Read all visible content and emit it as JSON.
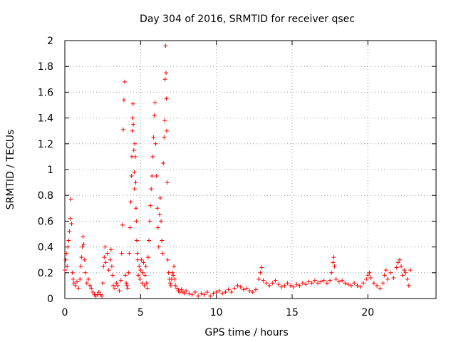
{
  "chart_data": {
    "type": "scatter",
    "title": "Day 304 of 2016, SRMTID for receiver qsec",
    "xlabel": "GPS time / hours",
    "ylabel": "SRMTID / TECUs",
    "xlim": [
      0,
      24.5
    ],
    "ylim": [
      0,
      2
    ],
    "xticks": [
      0,
      5,
      10,
      15,
      20
    ],
    "xtick_labels": [
      "0",
      "5",
      "10",
      "15",
      "20"
    ],
    "yticks": [
      0,
      0.2,
      0.4,
      0.6,
      0.8,
      1,
      1.2,
      1.4,
      1.6,
      1.8,
      2
    ],
    "ytick_labels": [
      "0",
      "0.2",
      "0.4",
      "0.6",
      "0.8",
      "1",
      "1.2",
      "1.4",
      "1.6",
      "1.8",
      "2"
    ],
    "grid": true,
    "marker": "+",
    "color": "#ff0000",
    "series": [
      {
        "name": "SRMTID",
        "points": [
          [
            0.0,
            0.22
          ],
          [
            0.05,
            0.3
          ],
          [
            0.1,
            0.35
          ],
          [
            0.15,
            0.25
          ],
          [
            0.2,
            0.4
          ],
          [
            0.25,
            0.45
          ],
          [
            0.3,
            0.52
          ],
          [
            0.35,
            0.62
          ],
          [
            0.4,
            0.77
          ],
          [
            0.45,
            0.58
          ],
          [
            0.5,
            0.2
          ],
          [
            0.55,
            0.15
          ],
          [
            0.6,
            0.12
          ],
          [
            0.7,
            0.1
          ],
          [
            0.8,
            0.13
          ],
          [
            0.9,
            0.08
          ],
          [
            1.0,
            0.15
          ],
          [
            1.05,
            0.25
          ],
          [
            1.1,
            0.32
          ],
          [
            1.15,
            0.4
          ],
          [
            1.2,
            0.48
          ],
          [
            1.25,
            0.42
          ],
          [
            1.3,
            0.3
          ],
          [
            1.35,
            0.2
          ],
          [
            1.45,
            0.12
          ],
          [
            1.55,
            0.15
          ],
          [
            1.65,
            0.1
          ],
          [
            1.75,
            0.08
          ],
          [
            1.85,
            0.05
          ],
          [
            1.95,
            0.03
          ],
          [
            2.05,
            0.02
          ],
          [
            2.15,
            0.03
          ],
          [
            2.25,
            0.05
          ],
          [
            2.35,
            0.03
          ],
          [
            2.45,
            0.02
          ],
          [
            2.5,
            0.12
          ],
          [
            2.55,
            0.25
          ],
          [
            2.6,
            0.32
          ],
          [
            2.65,
            0.4
          ],
          [
            2.7,
            0.28
          ],
          [
            2.8,
            0.35
          ],
          [
            2.9,
            0.22
          ],
          [
            3.0,
            0.3
          ],
          [
            3.05,
            0.38
          ],
          [
            3.1,
            0.25
          ],
          [
            3.15,
            0.18
          ],
          [
            3.2,
            0.1
          ],
          [
            3.3,
            0.08
          ],
          [
            3.4,
            0.12
          ],
          [
            3.5,
            0.1
          ],
          [
            3.6,
            0.06
          ],
          [
            3.7,
            0.14
          ],
          [
            3.75,
            0.35
          ],
          [
            3.8,
            0.57
          ],
          [
            3.85,
            1.31
          ],
          [
            3.9,
            1.54
          ],
          [
            3.95,
            1.68
          ],
          [
            4.0,
            0.18
          ],
          [
            4.05,
            0.12
          ],
          [
            4.1,
            0.1
          ],
          [
            4.15,
            0.08
          ],
          [
            4.2,
            0.2
          ],
          [
            4.25,
            0.35
          ],
          [
            4.3,
            0.55
          ],
          [
            4.35,
            0.75
          ],
          [
            4.4,
            0.95
          ],
          [
            4.42,
            1.1
          ],
          [
            4.45,
            1.3
          ],
          [
            4.47,
            1.4
          ],
          [
            4.5,
            1.51
          ],
          [
            4.52,
            1.35
          ],
          [
            4.55,
            1.15
          ],
          [
            4.58,
            0.98
          ],
          [
            4.6,
            0.85
          ],
          [
            4.62,
            1.2
          ],
          [
            4.65,
            1.1
          ],
          [
            4.68,
            0.9
          ],
          [
            4.7,
            0.7
          ],
          [
            4.72,
            0.6
          ],
          [
            4.75,
            0.45
          ],
          [
            4.78,
            0.35
          ],
          [
            4.8,
            0.3
          ],
          [
            4.85,
            0.18
          ],
          [
            4.9,
            0.25
          ],
          [
            4.95,
            0.15
          ],
          [
            5.0,
            0.22
          ],
          [
            5.05,
            0.3
          ],
          [
            5.1,
            0.12
          ],
          [
            5.15,
            0.2
          ],
          [
            5.2,
            0.28
          ],
          [
            5.25,
            0.1
          ],
          [
            5.3,
            0.18
          ],
          [
            5.35,
            0.25
          ],
          [
            5.4,
            0.12
          ],
          [
            5.45,
            0.08
          ],
          [
            5.5,
            0.32
          ],
          [
            5.55,
            0.45
          ],
          [
            5.6,
            0.6
          ],
          [
            5.65,
            0.72
          ],
          [
            5.7,
            0.85
          ],
          [
            5.75,
            0.95
          ],
          [
            5.8,
            1.1
          ],
          [
            5.85,
            1.25
          ],
          [
            5.9,
            1.42
          ],
          [
            5.95,
            1.52
          ],
          [
            6.0,
            1.2
          ],
          [
            6.05,
            0.95
          ],
          [
            6.1,
            0.7
          ],
          [
            6.15,
            0.55
          ],
          [
            6.2,
            0.4
          ],
          [
            6.25,
            0.65
          ],
          [
            6.3,
            0.78
          ],
          [
            6.35,
            0.6
          ],
          [
            6.4,
            0.45
          ],
          [
            6.45,
            0.35
          ],
          [
            6.5,
            1.05
          ],
          [
            6.55,
            1.25
          ],
          [
            6.6,
            1.38
          ],
          [
            6.62,
            1.7
          ],
          [
            6.65,
            1.96
          ],
          [
            6.68,
            1.75
          ],
          [
            6.7,
            1.55
          ],
          [
            6.72,
            1.3
          ],
          [
            6.75,
            0.9
          ],
          [
            6.8,
            0.3
          ],
          [
            6.85,
            0.2
          ],
          [
            6.9,
            0.15
          ],
          [
            6.95,
            0.12
          ],
          [
            7.0,
            0.1
          ],
          [
            7.05,
            0.15
          ],
          [
            7.1,
            0.2
          ],
          [
            7.15,
            0.18
          ],
          [
            7.2,
            0.25
          ],
          [
            7.25,
            0.15
          ],
          [
            7.3,
            0.1
          ],
          [
            7.4,
            0.08
          ],
          [
            7.5,
            0.06
          ],
          [
            7.6,
            0.05
          ],
          [
            7.7,
            0.07
          ],
          [
            7.8,
            0.05
          ],
          [
            7.9,
            0.04
          ],
          [
            8.0,
            0.06
          ],
          [
            8.2,
            0.04
          ],
          [
            8.4,
            0.03
          ],
          [
            8.6,
            0.05
          ],
          [
            8.8,
            0.02
          ],
          [
            9.0,
            0.04
          ],
          [
            9.2,
            0.03
          ],
          [
            9.4,
            0.05
          ],
          [
            9.6,
            0.02
          ],
          [
            9.8,
            0.04
          ],
          [
            10.0,
            0.05
          ],
          [
            10.2,
            0.06
          ],
          [
            10.4,
            0.04
          ],
          [
            10.6,
            0.05
          ],
          [
            10.8,
            0.07
          ],
          [
            11.0,
            0.05
          ],
          [
            11.2,
            0.08
          ],
          [
            11.4,
            0.1
          ],
          [
            11.6,
            0.09
          ],
          [
            11.8,
            0.07
          ],
          [
            12.0,
            0.08
          ],
          [
            12.2,
            0.06
          ],
          [
            12.4,
            0.05
          ],
          [
            12.6,
            0.07
          ],
          [
            12.8,
            0.15
          ],
          [
            12.9,
            0.2
          ],
          [
            13.0,
            0.24
          ],
          [
            13.1,
            0.14
          ],
          [
            13.3,
            0.12
          ],
          [
            13.5,
            0.1
          ],
          [
            13.7,
            0.12
          ],
          [
            13.9,
            0.14
          ],
          [
            14.1,
            0.11
          ],
          [
            14.3,
            0.09
          ],
          [
            14.5,
            0.1
          ],
          [
            14.7,
            0.12
          ],
          [
            14.9,
            0.1
          ],
          [
            15.1,
            0.09
          ],
          [
            15.3,
            0.11
          ],
          [
            15.5,
            0.1
          ],
          [
            15.7,
            0.12
          ],
          [
            15.9,
            0.11
          ],
          [
            16.1,
            0.13
          ],
          [
            16.3,
            0.12
          ],
          [
            16.5,
            0.14
          ],
          [
            16.7,
            0.12
          ],
          [
            16.9,
            0.13
          ],
          [
            17.1,
            0.14
          ],
          [
            17.3,
            0.12
          ],
          [
            17.5,
            0.14
          ],
          [
            17.6,
            0.2
          ],
          [
            17.7,
            0.28
          ],
          [
            17.75,
            0.32
          ],
          [
            17.8,
            0.25
          ],
          [
            17.9,
            0.15
          ],
          [
            18.1,
            0.13
          ],
          [
            18.3,
            0.14
          ],
          [
            18.5,
            0.12
          ],
          [
            18.7,
            0.11
          ],
          [
            18.9,
            0.1
          ],
          [
            19.1,
            0.12
          ],
          [
            19.3,
            0.1
          ],
          [
            19.5,
            0.09
          ],
          [
            19.7,
            0.12
          ],
          [
            19.9,
            0.15
          ],
          [
            20.0,
            0.18
          ],
          [
            20.1,
            0.2
          ],
          [
            20.2,
            0.16
          ],
          [
            20.4,
            0.12
          ],
          [
            20.6,
            0.1
          ],
          [
            20.8,
            0.08
          ],
          [
            21.0,
            0.12
          ],
          [
            21.1,
            0.18
          ],
          [
            21.2,
            0.22
          ],
          [
            21.3,
            0.15
          ],
          [
            21.5,
            0.2
          ],
          [
            21.7,
            0.16
          ],
          [
            21.9,
            0.24
          ],
          [
            22.0,
            0.28
          ],
          [
            22.1,
            0.3
          ],
          [
            22.2,
            0.25
          ],
          [
            22.3,
            0.18
          ],
          [
            22.4,
            0.22
          ],
          [
            22.5,
            0.2
          ],
          [
            22.6,
            0.15
          ],
          [
            22.7,
            0.1
          ],
          [
            22.8,
            0.22
          ]
        ]
      }
    ]
  }
}
